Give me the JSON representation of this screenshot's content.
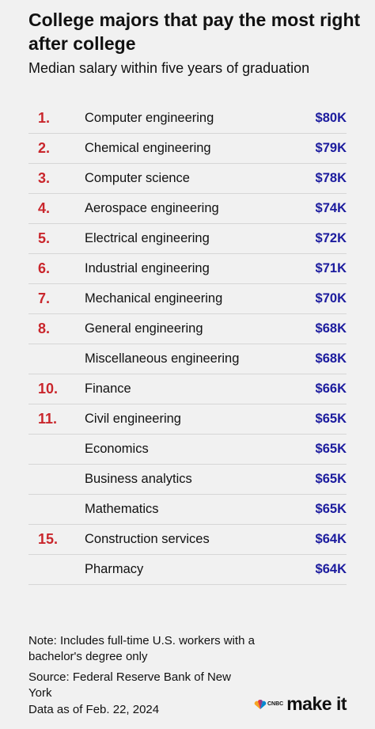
{
  "header": {
    "title": "College majors that pay the most right after college",
    "subtitle": "Median salary within five years of graduation"
  },
  "table": {
    "rows": [
      [
        "1.",
        "Computer engineering",
        "$80K"
      ],
      [
        "2.",
        "Chemical engineering",
        "$79K"
      ],
      [
        "3.",
        "Computer science",
        "$78K"
      ],
      [
        "4.",
        "Aerospace engineering",
        "$74K"
      ],
      [
        "5.",
        "Electrical engineering",
        "$72K"
      ],
      [
        "6.",
        "Industrial engineering",
        "$71K"
      ],
      [
        "7.",
        "Mechanical engineering",
        "$70K"
      ],
      [
        "8.",
        "General engineering",
        "$68K"
      ],
      [
        null,
        "Miscellaneous engineering",
        "$68K"
      ],
      [
        "10.",
        "Finance",
        "$66K"
      ],
      [
        "11.",
        "Civil engineering",
        "$65K"
      ],
      [
        null,
        "Economics",
        "$65K"
      ],
      [
        null,
        "Business analytics",
        "$65K"
      ],
      [
        null,
        "Mathematics",
        "$65K"
      ],
      [
        "15.",
        "Construction services",
        "$64K"
      ],
      [
        null,
        "Pharmacy",
        "$64K"
      ]
    ]
  },
  "footer": {
    "note": "Note: Includes full-time U.S. workers with a bachelor's degree only",
    "source": "Source: Federal Reserve Bank of New York",
    "date": "Data as of Feb. 22, 2024"
  },
  "logo": {
    "network": "CNBC",
    "brand": "make it"
  }
}
